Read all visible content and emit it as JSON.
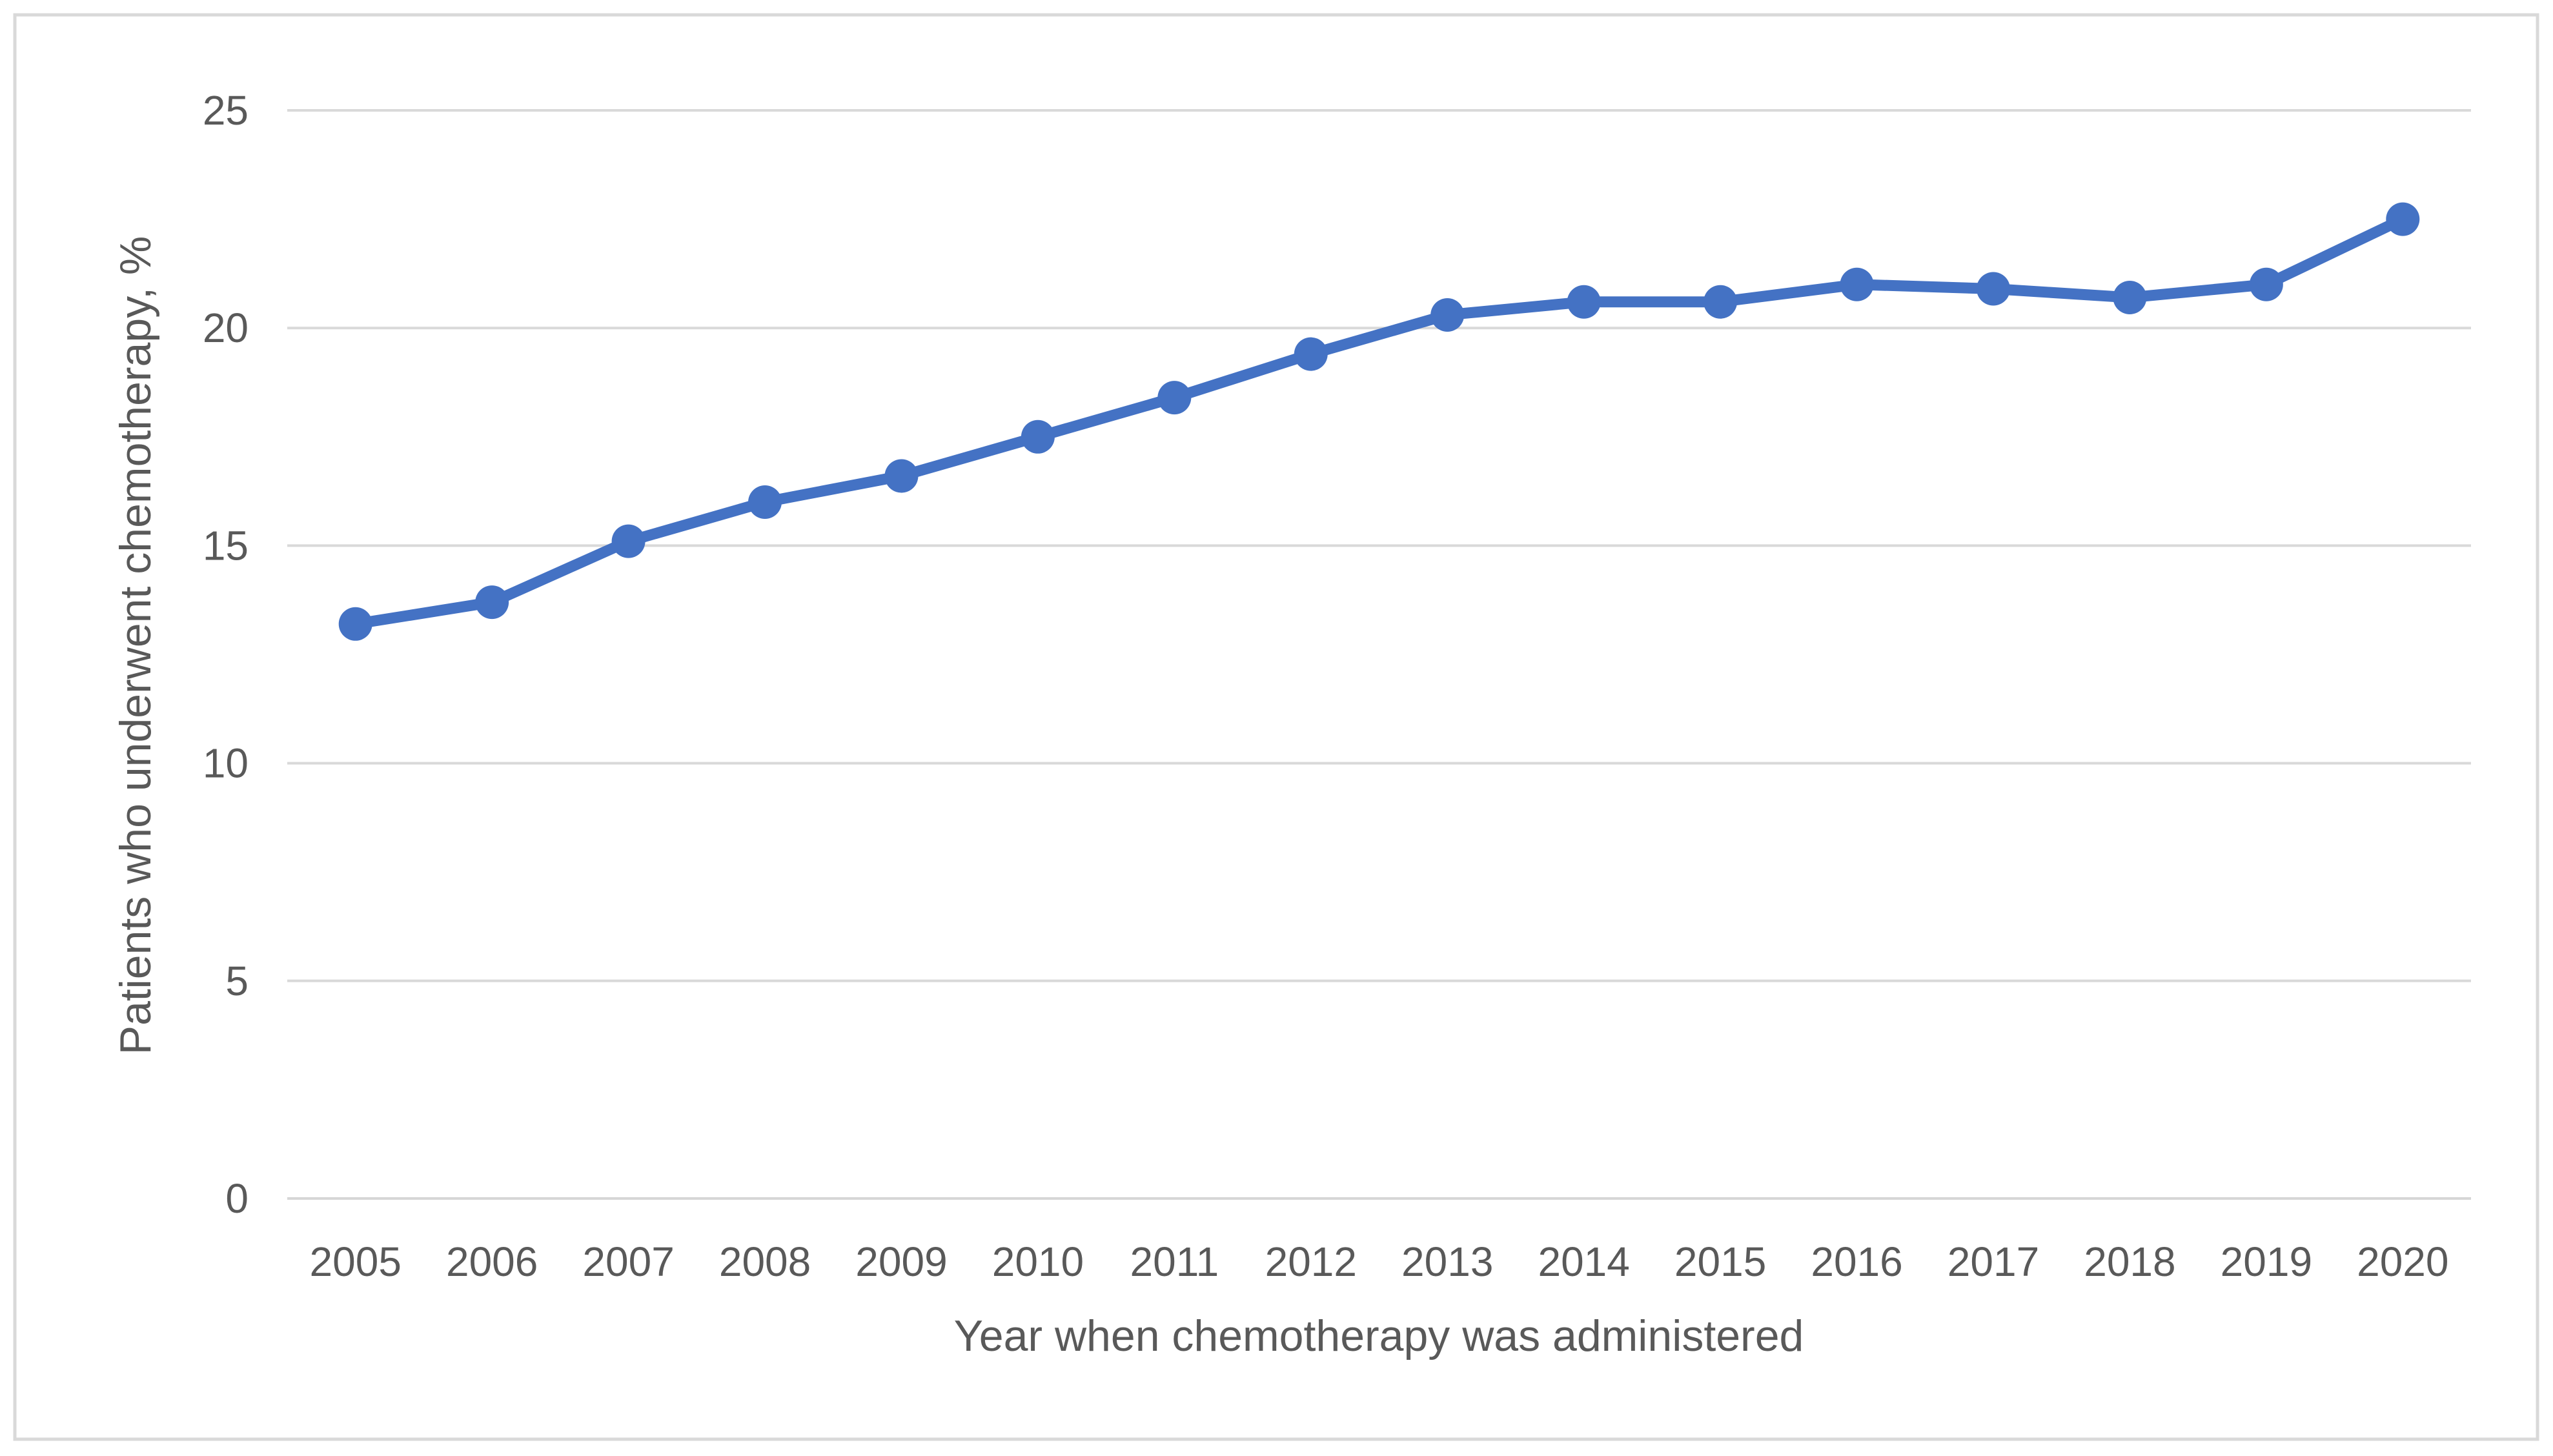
{
  "page": {
    "background_color": "#ffffff",
    "border_color": "#D9D9D9"
  },
  "chart_data": {
    "type": "line",
    "title": "",
    "xlabel": "Year when chemotherapy was administered",
    "ylabel": "Patients who underwent chemotherapy, %",
    "categories": [
      "2005",
      "2006",
      "2007",
      "2008",
      "2009",
      "2010",
      "2011",
      "2012",
      "2013",
      "2014",
      "2015",
      "2016",
      "2017",
      "2018",
      "2019",
      "2020"
    ],
    "series": [
      {
        "name": "Patients who underwent chemotherapy, %",
        "values": [
          13.2,
          13.7,
          15.1,
          16.0,
          16.6,
          17.5,
          18.4,
          19.4,
          20.3,
          20.6,
          20.6,
          21.0,
          20.9,
          20.7,
          21.0,
          22.5
        ]
      }
    ],
    "ylim": [
      0,
      25
    ],
    "yticks": [
      0,
      5,
      10,
      15,
      20,
      25
    ],
    "grid": "horizontal",
    "legend_position": "none",
    "line_color": "#4472C4",
    "marker_style": "circle",
    "marker_color": "#4472C4",
    "text_color": "#595959",
    "gridline_color": "#D9D9D9",
    "axis_line_color": "#D6D6D6"
  }
}
